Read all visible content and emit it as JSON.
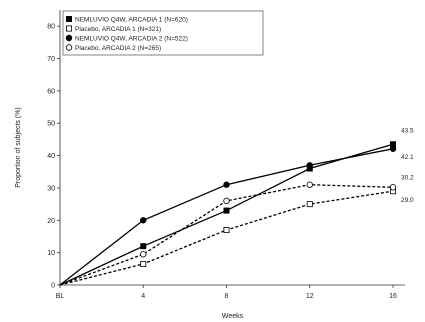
{
  "chart_data": {
    "type": "line",
    "categories": [
      "BL",
      "4",
      "8",
      "12",
      "16"
    ],
    "xlabel": "Weeks",
    "ylabel": "Proportion of subjects (%)",
    "ylim": [
      0,
      85
    ],
    "yticks": [
      0,
      10,
      20,
      30,
      40,
      50,
      60,
      70,
      80
    ],
    "legend_position": "top-left",
    "series": [
      {
        "name": "NEMLUVIO Q4W, ARCADIA 1 (N=620)",
        "values": [
          0,
          12,
          23,
          36,
          43.5
        ],
        "color": "#000000",
        "dashed": false,
        "marker": "square",
        "filled": true
      },
      {
        "name": "Placebo, ARCADIA 1 (N=321)",
        "values": [
          0,
          6.5,
          17,
          25,
          29.0
        ],
        "color": "#000000",
        "dashed": true,
        "marker": "square",
        "filled": false
      },
      {
        "name": "NEMLUVIO Q4W, ARCADIA 2 (N=522)",
        "values": [
          0,
          20,
          31,
          37,
          42.1
        ],
        "color": "#000000",
        "dashed": false,
        "marker": "circle",
        "filled": true
      },
      {
        "name": "Placebo, ARCADIA 2 (N=265)",
        "values": [
          0,
          9.5,
          26,
          31,
          30.2
        ],
        "color": "#000000",
        "dashed": true,
        "marker": "circle",
        "filled": false
      }
    ],
    "end_labels": [
      "43.5",
      "42.1",
      "30.2",
      "29.0"
    ]
  }
}
